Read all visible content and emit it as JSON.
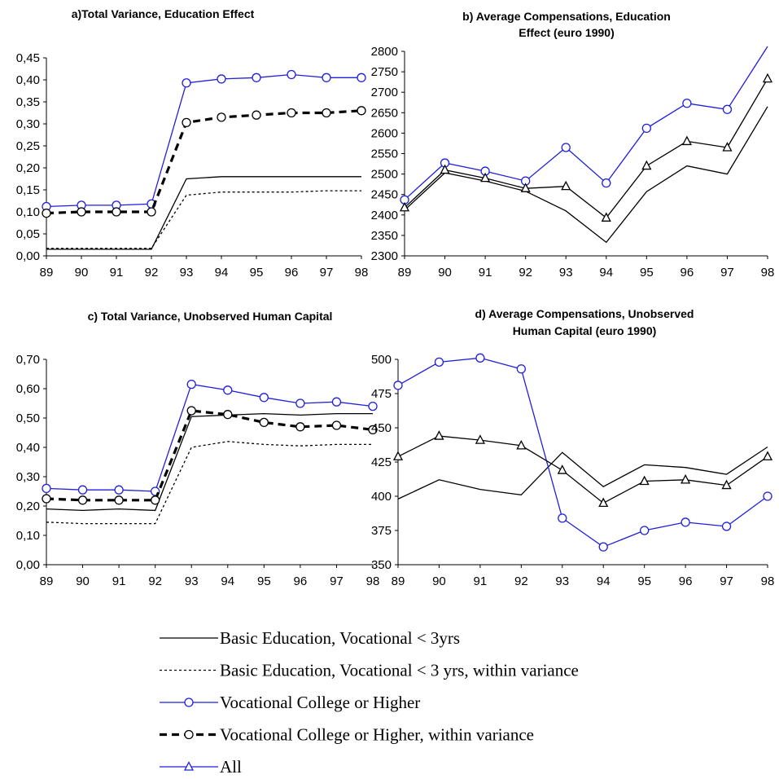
{
  "chart_data": [
    {
      "id": "a",
      "type": "line",
      "title": "a)Total Variance, Education Effect",
      "categories": [
        "89",
        "90",
        "91",
        "92",
        "93",
        "94",
        "95",
        "96",
        "97",
        "98"
      ],
      "ylim": [
        0,
        0.45
      ],
      "yticks": [
        "0,00",
        "0,05",
        "0,10",
        "0,15",
        "0,20",
        "0,25",
        "0,30",
        "0,35",
        "0,40",
        "0,45"
      ],
      "series": [
        {
          "key": "basic",
          "values": [
            0.015,
            0.015,
            0.015,
            0.015,
            0.175,
            0.18,
            0.18,
            0.18,
            0.18,
            0.18
          ]
        },
        {
          "key": "basic_within",
          "values": [
            0.017,
            0.017,
            0.017,
            0.017,
            0.138,
            0.145,
            0.145,
            0.145,
            0.148,
            0.148
          ]
        },
        {
          "key": "college",
          "values": [
            0.112,
            0.115,
            0.115,
            0.118,
            0.393,
            0.402,
            0.405,
            0.412,
            0.405,
            0.405
          ]
        },
        {
          "key": "college_within",
          "values": [
            0.097,
            0.1,
            0.1,
            0.1,
            0.303,
            0.315,
            0.32,
            0.325,
            0.325,
            0.33
          ]
        }
      ]
    },
    {
      "id": "b",
      "type": "line",
      "title": "b) Average Compensations, Education Effect (euro 1990)",
      "title_lines": [
        "b) Average Compensations, Education",
        "Effect (euro 1990)"
      ],
      "categories": [
        "89",
        "90",
        "91",
        "92",
        "93",
        "94",
        "95",
        "96",
        "97",
        "98"
      ],
      "ylim": [
        2300,
        2800
      ],
      "yticks": [
        "2300",
        "2350",
        "2400",
        "2450",
        "2500",
        "2550",
        "2600",
        "2650",
        "2700",
        "2750",
        "2800"
      ],
      "series": [
        {
          "key": "basic",
          "values": [
            2412,
            2503,
            2483,
            2458,
            2410,
            2333,
            2457,
            2520,
            2500,
            2665
          ]
        },
        {
          "key": "college",
          "values": [
            2437,
            2527,
            2507,
            2483,
            2565,
            2478,
            2612,
            2673,
            2658,
            2812
          ]
        },
        {
          "key": "all",
          "values": [
            2418,
            2510,
            2490,
            2465,
            2470,
            2393,
            2520,
            2580,
            2565,
            2733
          ]
        }
      ]
    },
    {
      "id": "c",
      "type": "line",
      "title": "c) Total Variance, Unobserved Human Capital",
      "categories": [
        "89",
        "90",
        "91",
        "92",
        "93",
        "94",
        "95",
        "96",
        "97",
        "98"
      ],
      "ylim": [
        0,
        0.7
      ],
      "yticks": [
        "0,00",
        "0,10",
        "0,20",
        "0,30",
        "0,40",
        "0,50",
        "0,60",
        "0,70"
      ],
      "series": [
        {
          "key": "basic",
          "values": [
            0.19,
            0.185,
            0.19,
            0.185,
            0.505,
            0.51,
            0.515,
            0.51,
            0.515,
            0.515
          ]
        },
        {
          "key": "basic_within",
          "values": [
            0.145,
            0.14,
            0.14,
            0.14,
            0.4,
            0.42,
            0.41,
            0.405,
            0.41,
            0.41
          ]
        },
        {
          "key": "college",
          "values": [
            0.26,
            0.255,
            0.255,
            0.25,
            0.615,
            0.595,
            0.57,
            0.55,
            0.555,
            0.54
          ]
        },
        {
          "key": "college_within",
          "values": [
            0.225,
            0.22,
            0.22,
            0.22,
            0.525,
            0.512,
            0.485,
            0.47,
            0.475,
            0.46
          ]
        }
      ]
    },
    {
      "id": "d",
      "type": "line",
      "title": "d) Average Compensations, Unobserved Human Capital (euro 1990)",
      "title_lines": [
        "d) Average Compensations, Unobserved",
        "Human Capital (euro 1990)"
      ],
      "categories": [
        "89",
        "90",
        "91",
        "92",
        "93",
        "94",
        "95",
        "96",
        "97",
        "98"
      ],
      "ylim": [
        350,
        500
      ],
      "yticks": [
        "350",
        "375",
        "400",
        "425",
        "450",
        "475",
        "500"
      ],
      "series": [
        {
          "key": "basic",
          "values": [
            398,
            412,
            405,
            401,
            432,
            407,
            423,
            421,
            416,
            436
          ]
        },
        {
          "key": "college",
          "values": [
            481,
            498,
            501,
            493,
            384,
            363,
            375,
            381,
            378,
            400
          ]
        },
        {
          "key": "all",
          "values": [
            429,
            444,
            441,
            437,
            419,
            395,
            411,
            412,
            408,
            429
          ]
        }
      ]
    }
  ],
  "legend": [
    {
      "key": "basic",
      "label": "Basic Education, Vocational < 3yrs"
    },
    {
      "key": "basic_within",
      "label": "Basic Education, Vocational < 3 yrs, within variance"
    },
    {
      "key": "college",
      "label": "Vocational College or Higher"
    },
    {
      "key": "college_within",
      "label": "Vocational College or Higher, within variance"
    },
    {
      "key": "all",
      "label": "All"
    }
  ],
  "colors": {
    "black": "#000000",
    "blue": "#1f1fdc"
  }
}
